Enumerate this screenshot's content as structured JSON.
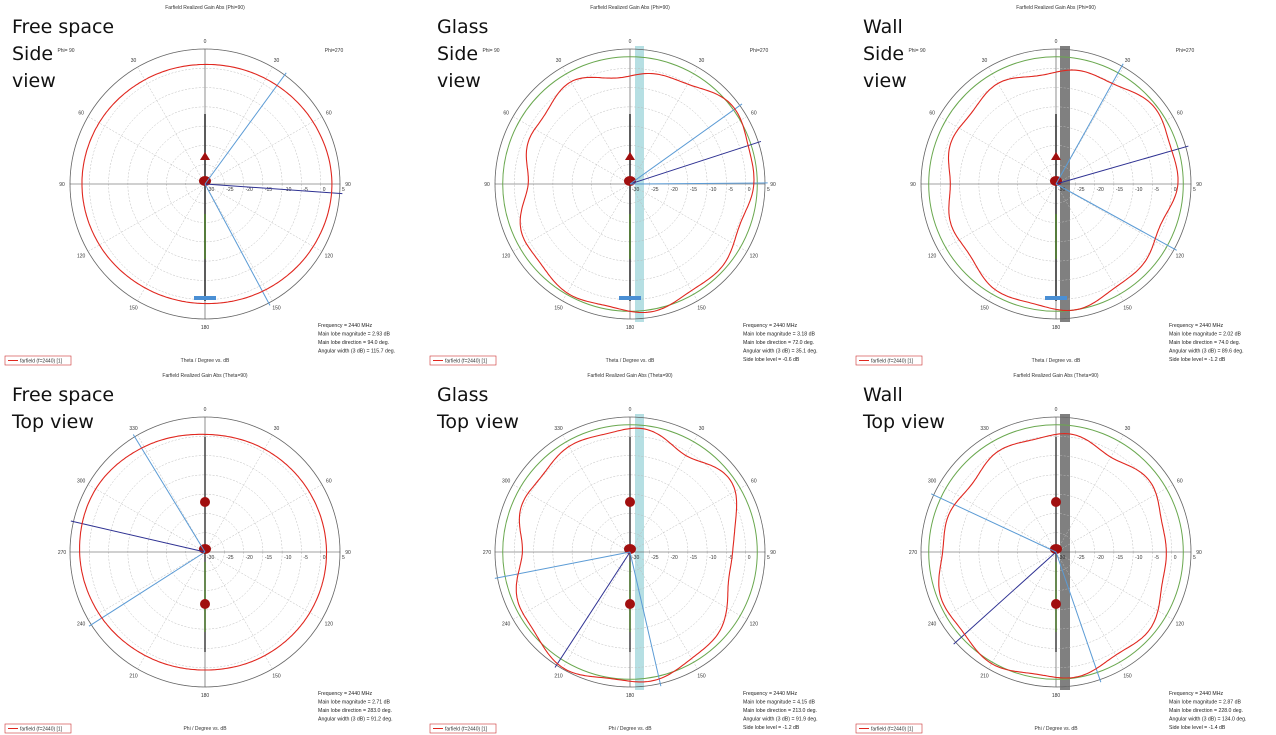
{
  "colors": {
    "pattern": "#e0271f",
    "reference": "#6aa84f",
    "main_lobe": "#5b9bd5",
    "beam_edge": "#2e3192",
    "glass": "#a9d9de",
    "wall": "#808080",
    "antenna_body": "#a10f0f",
    "antenna_base": "#4a8fd4"
  },
  "panels": [
    {
      "id": "free-space-side",
      "caption": "Free space\nSide\nview",
      "title": "Farfield Realized Gain Abs (Phi=90)",
      "corner_left": "Phi= 90",
      "corner_right": "Phi=270",
      "angle_labels": [
        "0",
        "30",
        "60",
        "90",
        "120",
        "150",
        "180",
        "150",
        "120",
        "90",
        "60",
        "30"
      ],
      "radial_labels": [
        "-30",
        "-25",
        "-20",
        "-15",
        "-10",
        "-5",
        "0",
        "5"
      ],
      "xlabel": "Theta / Degree vs. dB",
      "legend": "farfield (f=2440) [1]",
      "info": [
        "Frequency = 2440 MHz",
        "Main lobe magnitude =    2.93 dB",
        "Main lobe direction =    94.0 deg.",
        "Angular width (3 dB) =   115.7 deg."
      ],
      "obstacle": "none",
      "chart_data": {
        "type": "polar",
        "title": "Farfield Realized Gain Abs (Phi=90)",
        "xlabel": "Theta / Degree vs. dB",
        "r_range": [
          -30,
          5
        ],
        "series": [
          {
            "name": "farfield (f=2440) [1]",
            "theta_deg": [
              0,
              30,
              60,
              90,
              120,
              150,
              180,
              210,
              240,
              270,
              300,
              330
            ],
            "gain_db": [
              1.0,
              1.5,
              2.3,
              2.9,
              2.4,
              1.6,
              1.0,
              1.1,
              1.6,
              1.9,
              1.7,
              1.2
            ]
          }
        ],
        "main_lobe_deg": 94.0,
        "main_lobe_db": 2.93,
        "angular_width_deg": 115.7
      }
    },
    {
      "id": "glass-side",
      "caption": "Glass\nSide\nview",
      "title": "Farfield Realized Gain Abs (Phi=90)",
      "corner_left": "Phi= 90",
      "corner_right": "Phi=270",
      "angle_labels": [
        "0",
        "30",
        "60",
        "90",
        "120",
        "150",
        "180",
        "150",
        "120",
        "90",
        "60",
        "30"
      ],
      "radial_labels": [
        "-30",
        "-25",
        "-20",
        "-15",
        "-10",
        "-5",
        "0",
        "5"
      ],
      "xlabel": "Theta / Degree vs. dB",
      "legend": "farfield (f=2440) [1]",
      "info": [
        "Frequency = 2440 MHz",
        "Main lobe magnitude =    3.18 dB",
        "Main lobe direction =    72.0 deg.",
        "Angular width (3 dB) =   35.1 deg.",
        "Side lobe level =   -0.6 dB"
      ],
      "obstacle": "glass",
      "chart_data": {
        "type": "polar",
        "title": "Farfield Realized Gain Abs (Phi=90)",
        "xlabel": "Theta / Degree vs. dB",
        "r_range": [
          -30,
          5
        ],
        "series": [
          {
            "name": "farfield (f=2440) [1]",
            "theta_deg": [
              0,
              30,
              60,
              90,
              120,
              150,
              180,
              210,
              240,
              270,
              300,
              330
            ],
            "gain_db": [
              -2.0,
              0.5,
              3.2,
              1.5,
              1.0,
              2.5,
              3.0,
              2.0,
              1.0,
              -3.0,
              -1.5,
              0.0
            ]
          }
        ],
        "main_lobe_deg": 72.0,
        "main_lobe_db": 3.18,
        "angular_width_deg": 35.1,
        "side_lobe_db": -0.6
      }
    },
    {
      "id": "wall-side",
      "caption": "Wall\nSide\nview",
      "title": "Farfield Realized Gain Abs (Phi=90)",
      "corner_left": "Phi= 90",
      "corner_right": "Phi=270",
      "angle_labels": [
        "0",
        "30",
        "60",
        "90",
        "120",
        "150",
        "180",
        "150",
        "120",
        "90",
        "60",
        "30"
      ],
      "radial_labels": [
        "-30",
        "-25",
        "-20",
        "-15",
        "-10",
        "-5",
        "0",
        "5"
      ],
      "xlabel": "Theta / Degree vs. dB",
      "legend": "farfield (f=2440) [1]",
      "info": [
        "Frequency = 2440 MHz",
        "Main lobe magnitude =    2.02 dB",
        "Main lobe direction =    74.0 deg.",
        "Angular width (3 dB) =   89.6 deg.",
        "Side lobe level =   -1.2 dB"
      ],
      "obstacle": "wall",
      "chart_data": {
        "type": "polar",
        "title": "Farfield Realized Gain Abs (Phi=90)",
        "xlabel": "Theta / Degree vs. dB",
        "r_range": [
          -30,
          5
        ],
        "series": [
          {
            "name": "farfield (f=2440) [1]",
            "theta_deg": [
              0,
              30,
              60,
              90,
              120,
              150,
              180,
              210,
              240,
              270,
              300,
              330
            ],
            "gain_db": [
              -1.0,
              0.5,
              2.0,
              1.0,
              -0.5,
              1.5,
              2.5,
              1.0,
              -1.0,
              -2.0,
              -1.0,
              -0.5
            ]
          }
        ],
        "main_lobe_deg": 74.0,
        "main_lobe_db": 2.02,
        "angular_width_deg": 89.6,
        "side_lobe_db": -1.2
      }
    },
    {
      "id": "free-space-top",
      "caption": "Free space\nTop view",
      "title": "Farfield Realized Gain Abs (Theta=90)",
      "corner_left": "",
      "corner_right": "",
      "angle_labels": [
        "0",
        "30",
        "60",
        "90",
        "120",
        "150",
        "180",
        "210",
        "240",
        "270",
        "300",
        "330"
      ],
      "radial_labels": [
        "-30",
        "-25",
        "-20",
        "-15",
        "-10",
        "-5",
        "0",
        "5"
      ],
      "xlabel": "Phi / Degree vs. dB",
      "legend": "farfield (f=2440) [1]",
      "info": [
        "Frequency = 2440 MHz",
        "Main lobe magnitude =    2.71 dB",
        "Main lobe direction =    283.0 deg.",
        "Angular width (3 dB) =   91.2 deg."
      ],
      "obstacle": "none",
      "chart_data": {
        "type": "polar",
        "title": "Farfield Realized Gain Abs (Theta=90)",
        "xlabel": "Phi / Degree vs. dB",
        "r_range": [
          -30,
          5
        ],
        "series": [
          {
            "name": "farfield (f=2440) [1]",
            "theta_deg": [
              0,
              30,
              60,
              90,
              120,
              150,
              180,
              210,
              240,
              270,
              300,
              330
            ],
            "gain_db": [
              0.5,
              0.8,
              1.2,
              1.5,
              1.4,
              1.0,
              0.6,
              1.0,
              1.8,
              2.5,
              2.7,
              1.5
            ]
          }
        ],
        "main_lobe_deg": 283.0,
        "main_lobe_db": 2.71,
        "angular_width_deg": 91.2
      }
    },
    {
      "id": "glass-top",
      "caption": "Glass\nTop view",
      "title": "Farfield Realized Gain Abs (Theta=90)",
      "corner_left": "",
      "corner_right": "",
      "angle_labels": [
        "0",
        "30",
        "60",
        "90",
        "120",
        "150",
        "180",
        "210",
        "240",
        "270",
        "300",
        "330"
      ],
      "radial_labels": [
        "-30",
        "-25",
        "-20",
        "-15",
        "-10",
        "-5",
        "0",
        "5"
      ],
      "xlabel": "Phi / Degree vs. dB",
      "legend": "farfield (f=2440) [1]",
      "info": [
        "Frequency = 2440 MHz",
        "Main lobe magnitude =    4.15 dB",
        "Main lobe direction =    213.0 deg.",
        "Angular width (3 dB) =   91.9 deg.",
        "Side lobe level =   -1.2 dB"
      ],
      "obstacle": "glass",
      "chart_data": {
        "type": "polar",
        "title": "Farfield Realized Gain Abs (Theta=90)",
        "xlabel": "Phi / Degree vs. dB",
        "r_range": [
          -30,
          5
        ],
        "series": [
          {
            "name": "farfield (f=2440) [1]",
            "theta_deg": [
              0,
              30,
              60,
              90,
              120,
              150,
              180,
              210,
              240,
              270,
              300,
              330
            ],
            "gain_db": [
              2.0,
              -0.5,
              1.5,
              -4.0,
              -1.0,
              2.5,
              3.5,
              4.1,
              2.0,
              -1.5,
              0.5,
              1.0
            ]
          }
        ],
        "main_lobe_deg": 213.0,
        "main_lobe_db": 4.15,
        "angular_width_deg": 91.9,
        "side_lobe_db": -1.2
      }
    },
    {
      "id": "wall-top",
      "caption": "Wall\nTop view",
      "title": "Farfield Realized Gain Abs (Theta=90)",
      "corner_left": "",
      "corner_right": "",
      "angle_labels": [
        "0",
        "30",
        "60",
        "90",
        "120",
        "150",
        "180",
        "210",
        "240",
        "270",
        "300",
        "330"
      ],
      "radial_labels": [
        "-30",
        "-25",
        "-20",
        "-15",
        "-10",
        "-5",
        "0",
        "5"
      ],
      "xlabel": "Phi / Degree vs. dB",
      "legend": "farfield (f=2440) [1]",
      "info": [
        "Frequency = 2440 MHz",
        "Main lobe magnitude =    2.87 dB",
        "Main lobe direction =    228.0 deg.",
        "Angular width (3 dB) =   134.0 deg.",
        "Side lobe level =   -1.4 dB"
      ],
      "obstacle": "wall",
      "chart_data": {
        "type": "polar",
        "title": "Farfield Realized Gain Abs (Theta=90)",
        "xlabel": "Phi / Degree vs. dB",
        "r_range": [
          -30,
          5
        ],
        "series": [
          {
            "name": "farfield (f=2440) [1]",
            "theta_deg": [
              0,
              30,
              60,
              90,
              120,
              150,
              180,
              210,
              240,
              270,
              300,
              330
            ],
            "gain_db": [
              0.5,
              -1.0,
              0.0,
              -2.0,
              0.5,
              1.5,
              2.5,
              2.8,
              2.0,
              0.0,
              -1.5,
              -0.5
            ]
          }
        ],
        "main_lobe_deg": 228.0,
        "main_lobe_db": 2.87,
        "angular_width_deg": 134.0,
        "side_lobe_db": -1.4
      }
    }
  ]
}
